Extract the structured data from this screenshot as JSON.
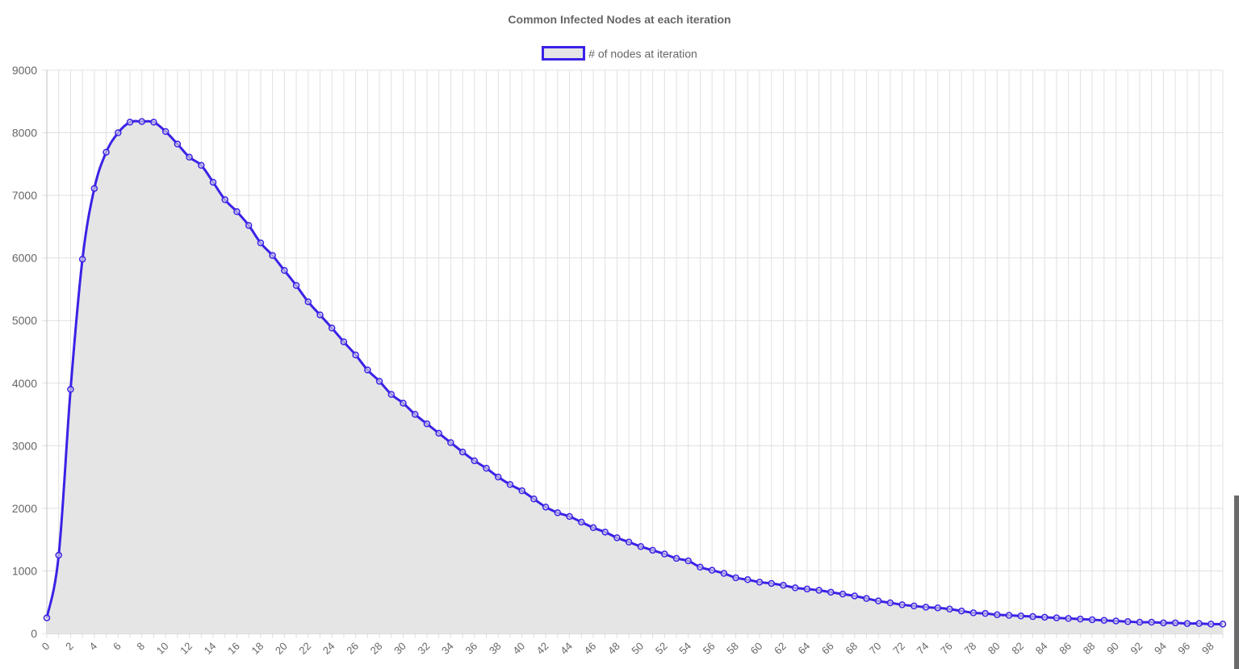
{
  "chart_data": {
    "type": "line",
    "title": "Common Infected Nodes at each iteration",
    "xlabel": "",
    "ylabel": "",
    "ylim": [
      0,
      9000
    ],
    "yticks": [
      0,
      1000,
      2000,
      3000,
      4000,
      5000,
      6000,
      7000,
      8000,
      9000
    ],
    "xtick_step": 2,
    "grid": true,
    "legend_position": "top",
    "colors": {
      "line": "#3a22e6",
      "fill": "#e5e5e5",
      "grid": "#e0e0e0",
      "text": "#666666"
    },
    "series": [
      {
        "name": "# of nodes at iteration",
        "x": [
          0,
          1,
          2,
          3,
          4,
          5,
          6,
          7,
          8,
          9,
          10,
          11,
          12,
          13,
          14,
          15,
          16,
          17,
          18,
          19,
          20,
          21,
          22,
          23,
          24,
          25,
          26,
          27,
          28,
          29,
          30,
          31,
          32,
          33,
          34,
          35,
          36,
          37,
          38,
          39,
          40,
          41,
          42,
          43,
          44,
          45,
          46,
          47,
          48,
          49,
          50,
          51,
          52,
          53,
          54,
          55,
          56,
          57,
          58,
          59,
          60,
          61,
          62,
          63,
          64,
          65,
          66,
          67,
          68,
          69,
          70,
          71,
          72,
          73,
          74,
          75,
          76,
          77,
          78,
          79,
          80,
          81,
          82,
          83,
          84,
          85,
          86,
          87,
          88,
          89,
          90,
          91,
          92,
          93,
          94,
          95,
          96,
          97,
          98,
          99
        ],
        "values": [
          250,
          1250,
          3900,
          5980,
          7110,
          7690,
          8000,
          8170,
          8180,
          8170,
          8020,
          7820,
          7610,
          7480,
          7210,
          6930,
          6740,
          6520,
          6240,
          6040,
          5800,
          5560,
          5300,
          5090,
          4880,
          4660,
          4450,
          4210,
          4030,
          3820,
          3680,
          3500,
          3350,
          3200,
          3050,
          2900,
          2760,
          2640,
          2500,
          2380,
          2280,
          2150,
          2020,
          1930,
          1870,
          1780,
          1690,
          1620,
          1530,
          1460,
          1390,
          1330,
          1270,
          1200,
          1160,
          1060,
          1010,
          960,
          890,
          860,
          820,
          800,
          770,
          730,
          710,
          690,
          660,
          630,
          600,
          560,
          520,
          490,
          460,
          440,
          420,
          410,
          390,
          360,
          330,
          320,
          300,
          290,
          280,
          270,
          260,
          250,
          240,
          230,
          220,
          210,
          200,
          190,
          180,
          180,
          170,
          170,
          160,
          160,
          150,
          150
        ]
      }
    ]
  }
}
